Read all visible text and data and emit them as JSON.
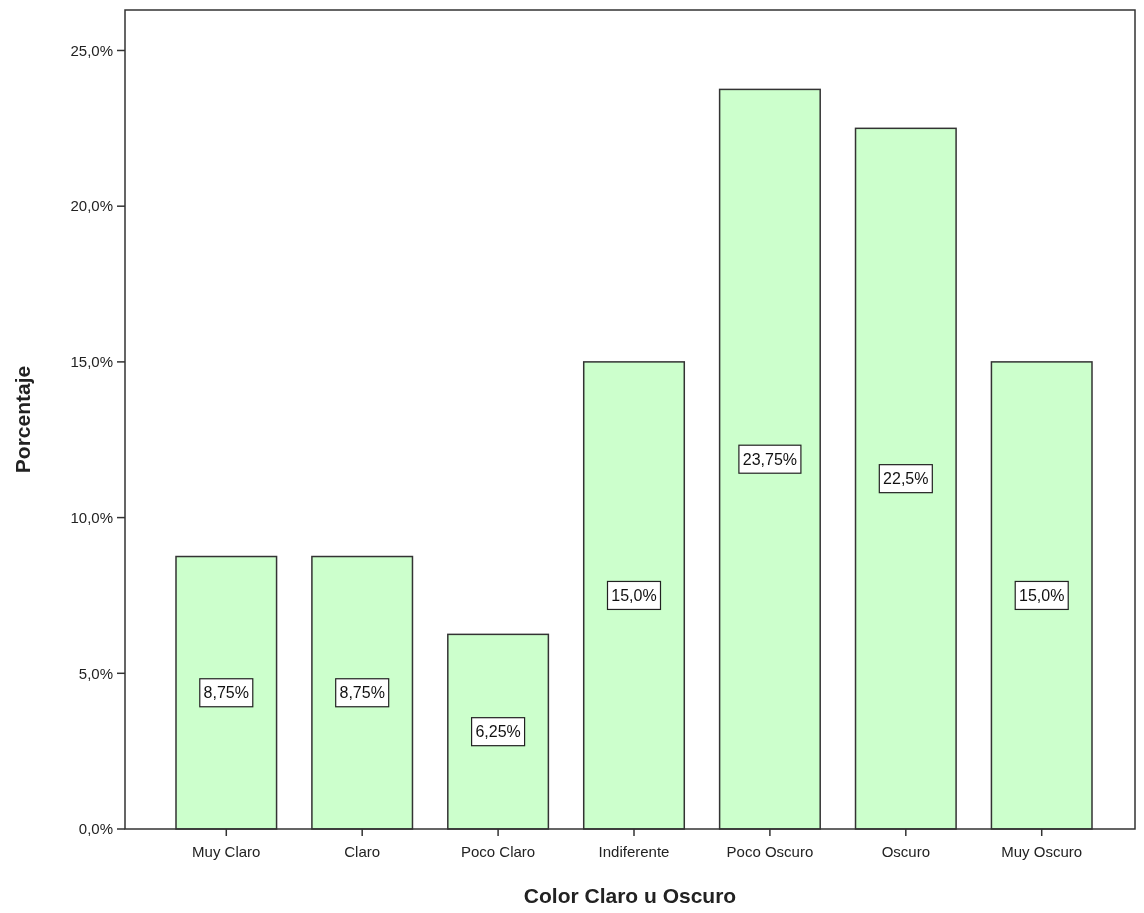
{
  "chart_data": {
    "type": "bar",
    "xlabel": "Color Claro u Oscuro",
    "ylabel": "Porcentaje",
    "categories": [
      "Muy Claro",
      "Claro",
      "Poco Claro",
      "Indiferente",
      "Poco Oscuro",
      "Oscuro",
      "Muy Oscuro"
    ],
    "values": [
      8.75,
      8.75,
      6.25,
      15,
      23.75,
      22.5,
      15
    ],
    "value_labels": [
      "8,75%",
      "8,75%",
      "6,25%",
      "15,0%",
      "23,75%",
      "22,5%",
      "15,0%"
    ],
    "color": "#ccffcc",
    "ylim": [
      0,
      26.3
    ],
    "yticks": [
      {
        "value": 0,
        "label": "0,0%"
      },
      {
        "value": 5,
        "label": "5,0%"
      },
      {
        "value": 10,
        "label": "10,0%"
      },
      {
        "value": 15,
        "label": "15,0%"
      },
      {
        "value": 20,
        "label": "20,0%"
      },
      {
        "value": 25,
        "label": "25,0%"
      }
    ],
    "grid": false
  }
}
